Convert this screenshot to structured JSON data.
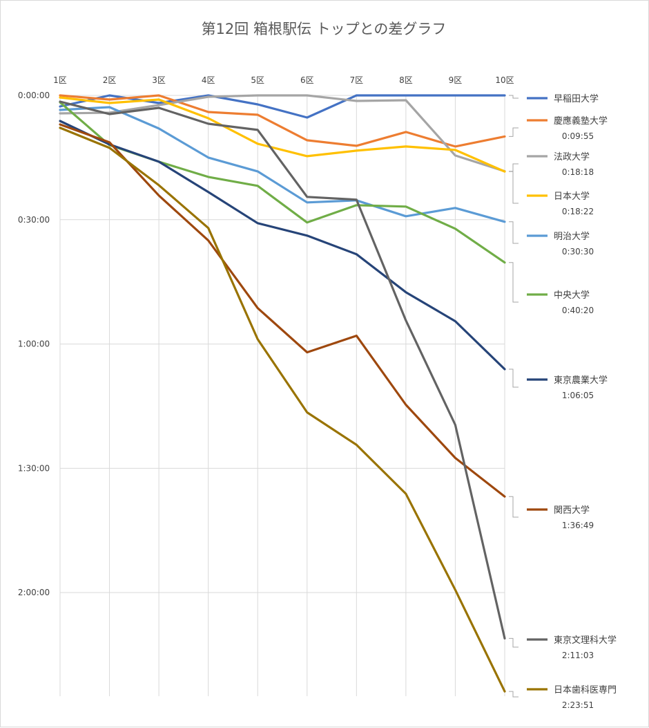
{
  "chart_data": {
    "type": "line",
    "title": "第12回 箱根駅伝 トップとの差グラフ",
    "x": [
      "1区",
      "2区",
      "3区",
      "4区",
      "5区",
      "6区",
      "7区",
      "8区",
      "9区",
      "10区"
    ],
    "y_unit": "seconds behind leader",
    "ylim": [
      0,
      8700
    ],
    "y_reversed": true,
    "y_ticks": [
      {
        "value": 0,
        "label": "0:00:00"
      },
      {
        "value": 1800,
        "label": "0:30:00"
      },
      {
        "value": 3600,
        "label": "1:00:00"
      },
      {
        "value": 5400,
        "label": "1:30:00"
      },
      {
        "value": 7200,
        "label": "2:00:00"
      }
    ],
    "grid": true,
    "legend": "right",
    "series": [
      {
        "name": "早稲田大学",
        "final_label": "",
        "color": "#4472C4",
        "values": [
          160,
          0,
          110,
          0,
          130,
          320,
          0,
          0,
          0,
          0
        ]
      },
      {
        "name": "慶應義塾大学",
        "final_label": "0:09:55",
        "color": "#ED7D31",
        "values": [
          0,
          60,
          0,
          240,
          280,
          650,
          730,
          530,
          740,
          595
        ]
      },
      {
        "name": "法政大学",
        "final_label": "0:18:18",
        "color": "#A5A5A5",
        "values": [
          260,
          250,
          140,
          20,
          0,
          0,
          80,
          70,
          870,
          1098
        ]
      },
      {
        "name": "日本大学",
        "final_label": "0:18:22",
        "color": "#FFC000",
        "values": [
          30,
          110,
          60,
          330,
          700,
          880,
          800,
          740,
          790,
          1102
        ]
      },
      {
        "name": "明治大学",
        "final_label": "0:30:30",
        "color": "#5B9BD5",
        "values": [
          210,
          170,
          480,
          900,
          1100,
          1550,
          1520,
          1750,
          1630,
          1830
        ]
      },
      {
        "name": "中央大学",
        "final_label": "0:40:20",
        "color": "#70AD47",
        "values": [
          100,
          720,
          960,
          1180,
          1310,
          1840,
          1590,
          1610,
          1930,
          2420
        ]
      },
      {
        "name": "東京農業大学",
        "final_label": "1:06:05",
        "color": "#264478",
        "values": [
          370,
          710,
          960,
          1400,
          1850,
          2030,
          2300,
          2850,
          3270,
          3965
        ]
      },
      {
        "name": "関西大学",
        "final_label": "1:36:49",
        "color": "#9E480E",
        "values": [
          420,
          680,
          1450,
          2100,
          3080,
          3720,
          3480,
          4480,
          5250,
          5809
        ]
      },
      {
        "name": "東京文理科大学",
        "final_label": "2:11:03",
        "color": "#636363",
        "values": [
          90,
          270,
          180,
          410,
          500,
          1470,
          1510,
          3260,
          4770,
          7863
        ]
      },
      {
        "name": "日本歯科医専門",
        "final_label": "2:23:51",
        "color": "#997300",
        "values": [
          470,
          760,
          1300,
          1920,
          3530,
          4590,
          5060,
          5770,
          7160,
          8631
        ]
      }
    ]
  }
}
